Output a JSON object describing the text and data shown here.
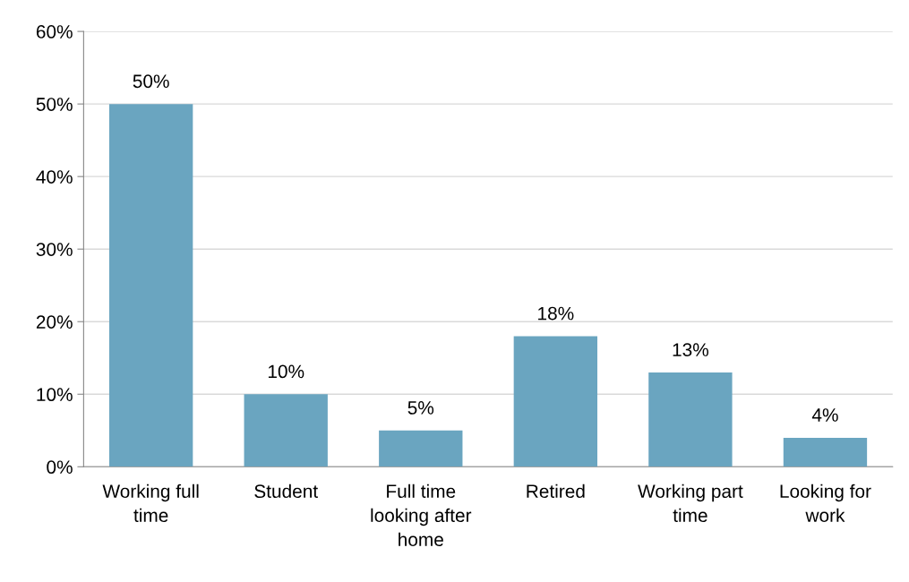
{
  "chart_data": {
    "type": "bar",
    "categories": [
      "Working full\ntime",
      "Student",
      "Full time\nlooking after\nhome",
      "Retired",
      "Working part\ntime",
      "Looking for\nwork"
    ],
    "values": [
      50,
      10,
      5,
      18,
      13,
      4
    ],
    "value_labels": [
      "50%",
      "10%",
      "5%",
      "18%",
      "13%",
      "4%"
    ],
    "color": "#6aa5c0",
    "ylim": [
      0,
      60
    ],
    "yticks": [
      {
        "value": 0,
        "label": "0%"
      },
      {
        "value": 10,
        "label": "10%"
      },
      {
        "value": 20,
        "label": "20%"
      },
      {
        "value": 30,
        "label": "30%"
      },
      {
        "value": 40,
        "label": "40%"
      },
      {
        "value": 50,
        "label": "50%"
      },
      {
        "value": 60,
        "label": "60%"
      }
    ],
    "grid": "y",
    "legend": false
  }
}
